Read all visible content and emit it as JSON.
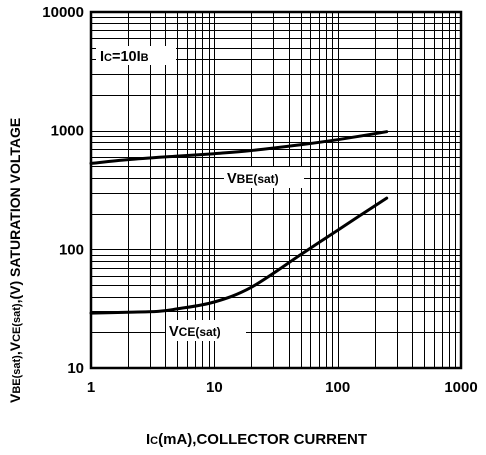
{
  "chart_data": {
    "type": "line",
    "x_scale": "log",
    "y_scale": "log",
    "xlim": [
      1,
      1000
    ],
    "ylim": [
      10,
      10000
    ],
    "grid": true,
    "x_ticks": [
      "1",
      "10",
      "100",
      "1000"
    ],
    "y_ticks": [
      "10",
      "100",
      "1000",
      "10000"
    ],
    "xlabel": {
      "prefix": "I",
      "sub": "C",
      "rest": "(mA),COLLECTOR CURRENT"
    },
    "ylabel": {
      "p1": "V",
      "s1": "BE(sat)",
      "p2": ",V",
      "s2": "CE(sat)",
      "rest": ",(V) SATURATION VOLTAGE"
    },
    "annotation": {
      "prefix": "I",
      "sub1": "C",
      "mid": "=10I",
      "sub2": "B"
    },
    "series": [
      {
        "name": "VBE(sat)",
        "label_main": "V",
        "label_sub": "BE(sat)",
        "points": [
          [
            1,
            530
          ],
          [
            2,
            570
          ],
          [
            5,
            610
          ],
          [
            10,
            640
          ],
          [
            20,
            680
          ],
          [
            50,
            760
          ],
          [
            100,
            840
          ],
          [
            250,
            980
          ]
        ]
      },
      {
        "name": "VCE(sat)",
        "label_main": "V",
        "label_sub": "CE(sat)",
        "points": [
          [
            1,
            29
          ],
          [
            2,
            29.5
          ],
          [
            3.5,
            30
          ],
          [
            5,
            31.5
          ],
          [
            10,
            36
          ],
          [
            20,
            48
          ],
          [
            50,
            90
          ],
          [
            100,
            145
          ],
          [
            250,
            270
          ]
        ]
      }
    ]
  }
}
